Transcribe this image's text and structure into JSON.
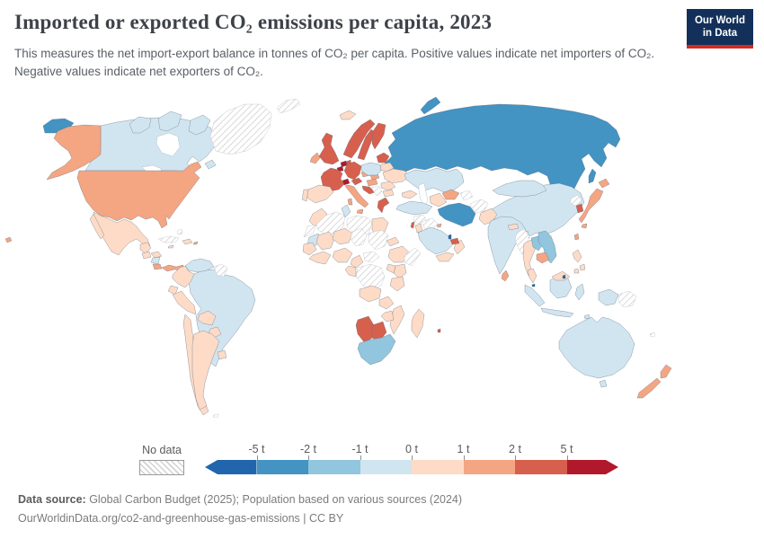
{
  "header": {
    "title": "Imported or exported CO₂ emissions per capita, 2023",
    "subtitle": "This measures the net import-export balance in tonnes of CO₂ per capita. Positive values indicate net importers of CO₂. Negative values indicate net exporters of CO₂.",
    "logo": {
      "line1": "Our World",
      "line2": "in Data",
      "bg_color": "#12305a",
      "accent_color": "#d42b21"
    }
  },
  "legend": {
    "no_data_label": "No data",
    "ticks": [
      "-5 t",
      "-2 t",
      "-1 t",
      "0 t",
      "1 t",
      "2 t",
      "5 t"
    ],
    "bins": [
      {
        "range": "< -5 t",
        "color": "#2166ac"
      },
      {
        "range": "-5 t to -2 t",
        "color": "#4393c3"
      },
      {
        "range": "-2 t to -1 t",
        "color": "#92c5de"
      },
      {
        "range": "-1 t to 0 t",
        "color": "#d1e5f0"
      },
      {
        "range": "0 t to 1 t",
        "color": "#fddbc7"
      },
      {
        "range": "1 t to 2 t",
        "color": "#f4a582"
      },
      {
        "range": "2 t to 5 t",
        "color": "#d6604d"
      },
      {
        "range": "> 5 t",
        "color": "#b2182b"
      }
    ]
  },
  "footer": {
    "source_label": "Data source:",
    "source_text": " Global Carbon Budget (2025); Population based on various sources (2024)",
    "url_line": "OurWorldinData.org/co2-and-greenhouse-gas-emissions | CC BY"
  },
  "chart_data": {
    "type": "choropleth_map",
    "title": "Imported or exported CO₂ emissions per capita",
    "year": 2023,
    "unit": "tonnes of CO₂ per capita (net import-export balance)",
    "legend_ticks": [
      "-5 t",
      "-2 t",
      "-1 t",
      "0 t",
      "1 t",
      "2 t",
      "5 t"
    ],
    "no_data_style": "diagonal hatch",
    "countries": {
      "canada": {
        "bin": "-1 t to 0 t",
        "color": "#d1e5f0"
      },
      "united-states": {
        "bin": "1 t to 2 t",
        "color": "#f4a582"
      },
      "mexico": {
        "bin": "0 t to 1 t",
        "color": "#fddbc7"
      },
      "guatemala": {
        "bin": "0 t to 1 t",
        "color": "#fddbc7"
      },
      "honduras": {
        "bin": "0 t to 1 t",
        "color": "#fddbc7"
      },
      "nicaragua": {
        "bin": "-1 t to 0 t",
        "color": "#d1e5f0"
      },
      "costa-rica": {
        "bin": "1 t to 2 t",
        "color": "#f4a582"
      },
      "panama": {
        "bin": "1 t to 2 t",
        "color": "#f4a582"
      },
      "cuba": {
        "bin": "No data",
        "color": "hatch"
      },
      "bahamas": {
        "bin": "No data",
        "color": "hatch"
      },
      "dominican-republic": {
        "bin": "0 t to 1 t",
        "color": "#fddbc7"
      },
      "jamaica": {
        "bin": "0 t to 1 t",
        "color": "#fddbc7"
      },
      "puerto-rico": {
        "bin": "1 t to 2 t",
        "color": "#f4a582"
      },
      "trinidad-and-tobago": {
        "bin": "< -5 t",
        "color": "#2166ac"
      },
      "greenland": {
        "bin": "No data",
        "color": "hatch"
      },
      "iceland": {
        "bin": "0 t to 1 t",
        "color": "#fddbc7"
      },
      "venezuela": {
        "bin": "-1 t to 0 t",
        "color": "#d1e5f0"
      },
      "guyana-suriname": {
        "bin": "No data",
        "color": "hatch"
      },
      "colombia": {
        "bin": "0 t to 1 t",
        "color": "#fddbc7"
      },
      "ecuador": {
        "bin": "0 t to 1 t",
        "color": "#fddbc7"
      },
      "peru": {
        "bin": "0 t to 1 t",
        "color": "#fddbc7"
      },
      "brazil": {
        "bin": "-1 t to 0 t",
        "color": "#d1e5f0"
      },
      "bolivia": {
        "bin": "0 t to 1 t",
        "color": "#fddbc7"
      },
      "paraguay": {
        "bin": "0 t to 1 t",
        "color": "#fddbc7"
      },
      "chile": {
        "bin": "0 t to 1 t",
        "color": "#fddbc7"
      },
      "argentina": {
        "bin": "0 t to 1 t",
        "color": "#fddbc7"
      },
      "uruguay": {
        "bin": "0 t to 1 t",
        "color": "#fddbc7"
      },
      "falkland-islands": {
        "bin": "No data",
        "color": "hatch"
      },
      "united-kingdom": {
        "bin": "2 t to 5 t",
        "color": "#d6604d"
      },
      "ireland": {
        "bin": "1 t to 2 t",
        "color": "#f4a582"
      },
      "norway": {
        "bin": "2 t to 5 t",
        "color": "#d6604d"
      },
      "sweden": {
        "bin": "2 t to 5 t",
        "color": "#d6604d"
      },
      "finland": {
        "bin": "2 t to 5 t",
        "color": "#d6604d"
      },
      "denmark": {
        "bin": "2 t to 5 t",
        "color": "#d6604d"
      },
      "france": {
        "bin": "2 t to 5 t",
        "color": "#d6604d"
      },
      "germany": {
        "bin": "2 t to 5 t",
        "color": "#d6604d"
      },
      "netherlands": {
        "bin": "> 5 t",
        "color": "#b2182b"
      },
      "belgium": {
        "bin": "> 5 t",
        "color": "#b2182b"
      },
      "switzerland": {
        "bin": "> 5 t",
        "color": "#b2182b"
      },
      "austria": {
        "bin": "2 t to 5 t",
        "color": "#d6604d"
      },
      "czechia": {
        "bin": "1 t to 2 t",
        "color": "#f4a582"
      },
      "slovakia": {
        "bin": "1 t to 2 t",
        "color": "#f4a582"
      },
      "hungary": {
        "bin": "1 t to 2 t",
        "color": "#f4a582"
      },
      "poland": {
        "bin": "-1 t to 0 t",
        "color": "#d1e5f0"
      },
      "baltic-states": {
        "bin": "2 t to 5 t",
        "color": "#d6604d"
      },
      "belarus": {
        "bin": "0 t to 1 t",
        "color": "#fddbc7"
      },
      "ukraine": {
        "bin": "0 t to 1 t",
        "color": "#fddbc7"
      },
      "romania": {
        "bin": "0 t to 1 t",
        "color": "#fddbc7"
      },
      "bulgaria": {
        "bin": "0 t to 1 t",
        "color": "#fddbc7"
      },
      "croatia": {
        "bin": "2 t to 5 t",
        "color": "#d6604d"
      },
      "serbia-bosnia": {
        "bin": "No data",
        "color": "hatch"
      },
      "greece": {
        "bin": "2 t to 5 t",
        "color": "#d6604d"
      },
      "italy": {
        "bin": "1 t to 2 t",
        "color": "#f4a582"
      },
      "spain": {
        "bin": "0 t to 1 t",
        "color": "#fddbc7"
      },
      "portugal": {
        "bin": "0 t to 1 t",
        "color": "#fddbc7"
      },
      "svalbard": {
        "bin": "No data",
        "color": "hatch"
      },
      "russia": {
        "bin": "-5 t to -2 t",
        "color": "#4393c3"
      },
      "kazakhstan": {
        "bin": "-1 t to 0 t",
        "color": "#d1e5f0"
      },
      "uzbekistan": {
        "bin": "1 t to 2 t",
        "color": "#f4a582"
      },
      "turkmenistan": {
        "bin": "0 t to 1 t",
        "color": "#fddbc7"
      },
      "kyrgyzstan-tajikistan": {
        "bin": "No data",
        "color": "hatch"
      },
      "caucasus": {
        "bin": "0 t to 1 t",
        "color": "#fddbc7"
      },
      "turkey": {
        "bin": "-1 t to 0 t",
        "color": "#d1e5f0"
      },
      "syria": {
        "bin": "No data",
        "color": "hatch"
      },
      "iraq": {
        "bin": "No data",
        "color": "hatch"
      },
      "israel": {
        "bin": "2 t to 5 t",
        "color": "#d6604d"
      },
      "jordan": {
        "bin": "0 t to 1 t",
        "color": "#fddbc7"
      },
      "saudi-arabia": {
        "bin": "-1 t to 0 t",
        "color": "#d1e5f0"
      },
      "yemen": {
        "bin": "0 t to 1 t",
        "color": "#fddbc7"
      },
      "oman": {
        "bin": "0 t to 1 t",
        "color": "#fddbc7"
      },
      "uae": {
        "bin": "2 t to 5 t",
        "color": "#d6604d"
      },
      "qatar": {
        "bin": "< -5 t",
        "color": "#2166ac"
      },
      "kuwait": {
        "bin": "1 t to 2 t",
        "color": "#f4a582"
      },
      "iran": {
        "bin": "-5 t to -2 t",
        "color": "#4393c3"
      },
      "afghanistan": {
        "bin": "No data",
        "color": "hatch"
      },
      "pakistan": {
        "bin": "0 t to 1 t",
        "color": "#fddbc7"
      },
      "india": {
        "bin": "-1 t to 0 t",
        "color": "#d1e5f0"
      },
      "nepal": {
        "bin": "0 t to 1 t",
        "color": "#fddbc7"
      },
      "bangladesh": {
        "bin": "0 t to 1 t",
        "color": "#fddbc7"
      },
      "sri-lanka": {
        "bin": "1 t to 2 t",
        "color": "#f4a582"
      },
      "china": {
        "bin": "-1 t to 0 t",
        "color": "#d1e5f0"
      },
      "mongolia": {
        "bin": "-1 t to 0 t",
        "color": "#d1e5f0"
      },
      "north-korea": {
        "bin": "No data",
        "color": "hatch"
      },
      "south-korea": {
        "bin": "2 t to 5 t",
        "color": "#d6604d"
      },
      "japan": {
        "bin": "1 t to 2 t",
        "color": "#f4a582"
      },
      "taiwan": {
        "bin": "1 t to 2 t",
        "color": "#f4a582"
      },
      "myanmar": {
        "bin": "No data",
        "color": "hatch"
      },
      "thailand": {
        "bin": "0 t to 1 t",
        "color": "#fddbc7"
      },
      "laos": {
        "bin": "-2 t to -1 t",
        "color": "#92c5de"
      },
      "vietnam": {
        "bin": "-2 t to -1 t",
        "color": "#92c5de"
      },
      "cambodia": {
        "bin": "1 t to 2 t",
        "color": "#f4a582"
      },
      "malaysia": {
        "bin": "0 t to 1 t",
        "color": "#fddbc7"
      },
      "singapore": {
        "bin": "< -5 t",
        "color": "#2166ac"
      },
      "brunei": {
        "bin": "< -5 t",
        "color": "#2166ac"
      },
      "indonesia": {
        "bin": "-1 t to 0 t",
        "color": "#d1e5f0"
      },
      "east-timor": {
        "bin": "-1 t to 0 t",
        "color": "#d1e5f0"
      },
      "philippines": {
        "bin": "0 t to 1 t",
        "color": "#fddbc7"
      },
      "papua-new-guinea": {
        "bin": "No data",
        "color": "hatch"
      },
      "new-caledonia": {
        "bin": "No data",
        "color": "hatch"
      },
      "australia": {
        "bin": "-1 t to 0 t",
        "color": "#d1e5f0"
      },
      "new-zealand": {
        "bin": "1 t to 2 t",
        "color": "#f4a582"
      },
      "morocco": {
        "bin": "0 t to 1 t",
        "color": "#fddbc7"
      },
      "western-sahara": {
        "bin": "No data",
        "color": "hatch"
      },
      "algeria": {
        "bin": "No data",
        "color": "hatch"
      },
      "tunisia": {
        "bin": "-1 t to 0 t",
        "color": "#d1e5f0"
      },
      "libya": {
        "bin": "No data",
        "color": "hatch"
      },
      "egypt": {
        "bin": "0 t to 1 t",
        "color": "#fddbc7"
      },
      "mauritania": {
        "bin": "-1 t to 0 t",
        "color": "#d1e5f0"
      },
      "senegal": {
        "bin": "0 t to 1 t",
        "color": "#fddbc7"
      },
      "mali": {
        "bin": "0 t to 1 t",
        "color": "#fddbc7"
      },
      "niger": {
        "bin": "0 t to 1 t",
        "color": "#fddbc7"
      },
      "chad": {
        "bin": "No data",
        "color": "hatch"
      },
      "sudan": {
        "bin": "No data",
        "color": "hatch"
      },
      "eritrea": {
        "bin": "0 t to 1 t",
        "color": "#fddbc7"
      },
      "ethiopia": {
        "bin": "0 t to 1 t",
        "color": "#fddbc7"
      },
      "somalia": {
        "bin": "No data",
        "color": "hatch"
      },
      "nigeria": {
        "bin": "0 t to 1 t",
        "color": "#fddbc7"
      },
      "west-african-coast": {
        "bin": "0 t to 1 t",
        "color": "#fddbc7"
      },
      "cameroon": {
        "bin": "0 t to 1 t",
        "color": "#fddbc7"
      },
      "central-african-republic": {
        "bin": "No data",
        "color": "hatch"
      },
      "gabon-congo": {
        "bin": "0 t to 1 t",
        "color": "#fddbc7"
      },
      "dr-congo": {
        "bin": "No data",
        "color": "hatch"
      },
      "uganda": {
        "bin": "0 t to 1 t",
        "color": "#fddbc7"
      },
      "kenya": {
        "bin": "0 t to 1 t",
        "color": "#fddbc7"
      },
      "tanzania": {
        "bin": "0 t to 1 t",
        "color": "#fddbc7"
      },
      "angola": {
        "bin": "0 t to 1 t",
        "color": "#fddbc7"
      },
      "zambia": {
        "bin": "0 t to 1 t",
        "color": "#fddbc7"
      },
      "zimbabwe": {
        "bin": "0 t to 1 t",
        "color": "#fddbc7"
      },
      "mozambique": {
        "bin": "0 t to 1 t",
        "color": "#fddbc7"
      },
      "namibia": {
        "bin": "2 t to 5 t",
        "color": "#d6604d"
      },
      "botswana": {
        "bin": "2 t to 5 t",
        "color": "#d6604d"
      },
      "south-africa": {
        "bin": "-2 t to -1 t",
        "color": "#92c5de"
      },
      "madagascar": {
        "bin": "0 t to 1 t",
        "color": "#fddbc7"
      },
      "mauritius": {
        "bin": "2 t to 5 t",
        "color": "#d6604d"
      },
      "hawaii-usa": {
        "bin": "1 t to 2 t",
        "color": "#f4a582"
      }
    }
  }
}
